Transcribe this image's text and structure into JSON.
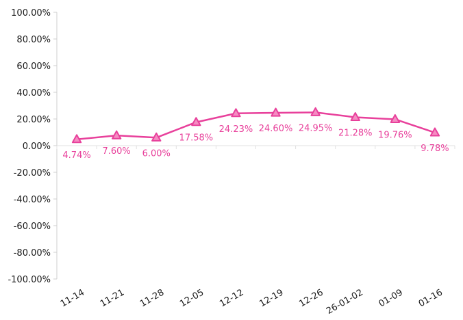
{
  "chart_data": {
    "type": "line",
    "categories": [
      "11-14",
      "11-21",
      "11-28",
      "12-05",
      "12-12",
      "12-19",
      "12-26",
      "26-01-02",
      "01-09",
      "01-16"
    ],
    "series": [
      {
        "values": [
          4.74,
          7.6,
          6.0,
          17.58,
          24.23,
          24.6,
          24.95,
          21.28,
          19.76,
          9.78
        ],
        "data_labels": [
          "4.74%",
          "7.60%",
          "6.00%",
          "17.58%",
          "24.23%",
          "24.60%",
          "24.95%",
          "21.28%",
          "19.76%",
          "9.78%"
        ],
        "color": "#e8409b",
        "marker": "triangle",
        "marker_fill": "#f58cc2"
      }
    ],
    "ylim": [
      -100,
      100
    ],
    "yticks": [
      100,
      80,
      60,
      40,
      20,
      0,
      -20,
      -40,
      -60,
      -80,
      -100
    ],
    "ytick_labels": [
      "100.00%",
      "80.00%",
      "60.00%",
      "40.00%",
      "20.00%",
      "0.00%",
      "-20.00%",
      "-40.00%",
      "-60.00%",
      "-80.00%",
      "-100.00%"
    ],
    "title": "",
    "xlabel": "",
    "ylabel": "",
    "grid": false,
    "legend": "none"
  }
}
